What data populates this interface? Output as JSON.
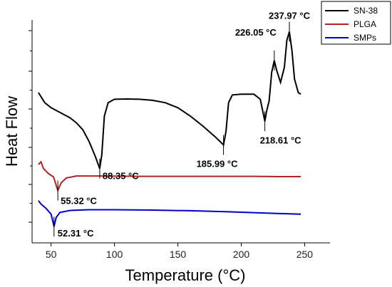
{
  "chart_data": {
    "type": "line",
    "xlabel": "Temperature (°C)",
    "ylabel": "Heat Flow",
    "xlim": [
      35,
      270
    ],
    "x_ticks": [
      50,
      100,
      150,
      200,
      250
    ],
    "y_ticks": [
      "",
      "",
      "",
      "",
      "",
      ""
    ],
    "grid": false,
    "legend_position": "top-right",
    "series": [
      {
        "name": "SN-38",
        "color": "#000000",
        "points": [
          [
            40,
            7.05
          ],
          [
            45,
            6.75
          ],
          [
            50,
            6.6
          ],
          [
            55,
            6.5
          ],
          [
            60,
            6.4
          ],
          [
            65,
            6.3
          ],
          [
            70,
            6.15
          ],
          [
            75,
            5.95
          ],
          [
            80,
            5.6
          ],
          [
            85,
            5.15
          ],
          [
            88.35,
            4.8
          ],
          [
            90,
            5.2
          ],
          [
            92,
            6.35
          ],
          [
            95,
            6.75
          ],
          [
            100,
            6.85
          ],
          [
            110,
            6.86
          ],
          [
            120,
            6.85
          ],
          [
            130,
            6.82
          ],
          [
            140,
            6.75
          ],
          [
            150,
            6.6
          ],
          [
            160,
            6.35
          ],
          [
            170,
            6.05
          ],
          [
            180,
            5.72
          ],
          [
            185.99,
            5.5
          ],
          [
            188,
            5.9
          ],
          [
            190,
            6.75
          ],
          [
            193,
            6.98
          ],
          [
            200,
            7.0
          ],
          [
            210,
            7.0
          ],
          [
            215,
            6.85
          ],
          [
            218.61,
            6.2
          ],
          [
            220,
            6.5
          ],
          [
            222,
            6.8
          ],
          [
            224,
            7.65
          ],
          [
            226.05,
            8.0
          ],
          [
            228,
            7.7
          ],
          [
            231,
            7.35
          ],
          [
            234,
            7.8
          ],
          [
            236,
            8.6
          ],
          [
            237.97,
            8.85
          ],
          [
            240,
            8.3
          ],
          [
            242,
            7.45
          ],
          [
            245,
            7.05
          ],
          [
            247,
            7.0
          ]
        ],
        "annotations": [
          {
            "x": 88.35,
            "label": "88.35 °C"
          },
          {
            "x": 185.99,
            "label": "185.99 °C"
          },
          {
            "x": 218.61,
            "label": "218.61 °C"
          },
          {
            "x": 226.05,
            "label": "226.05 °C"
          },
          {
            "x": 237.97,
            "label": "237.97 °C"
          }
        ]
      },
      {
        "name": "PLGA",
        "color": "#b22222",
        "points": [
          [
            40,
            4.92
          ],
          [
            42,
            5.0
          ],
          [
            44,
            4.8
          ],
          [
            48,
            4.65
          ],
          [
            52,
            4.55
          ],
          [
            55.32,
            4.15
          ],
          [
            58,
            4.38
          ],
          [
            62,
            4.52
          ],
          [
            70,
            4.58
          ],
          [
            90,
            4.58
          ],
          [
            120,
            4.57
          ],
          [
            150,
            4.57
          ],
          [
            180,
            4.57
          ],
          [
            210,
            4.57
          ],
          [
            230,
            4.56
          ],
          [
            247,
            4.56
          ]
        ],
        "annotations": [
          {
            "x": 55.32,
            "label": "55.32 °C"
          }
        ]
      },
      {
        "name": "SMPs",
        "color": "#0000cc",
        "points": [
          [
            40,
            3.85
          ],
          [
            42,
            3.75
          ],
          [
            46,
            3.62
          ],
          [
            50,
            3.45
          ],
          [
            52.31,
            3.08
          ],
          [
            54,
            3.35
          ],
          [
            57,
            3.5
          ],
          [
            65,
            3.56
          ],
          [
            80,
            3.58
          ],
          [
            100,
            3.58
          ],
          [
            130,
            3.57
          ],
          [
            160,
            3.55
          ],
          [
            190,
            3.52
          ],
          [
            220,
            3.48
          ],
          [
            247,
            3.45
          ]
        ],
        "annotations": [
          {
            "x": 52.31,
            "label": "52.31 °C"
          }
        ]
      }
    ]
  }
}
